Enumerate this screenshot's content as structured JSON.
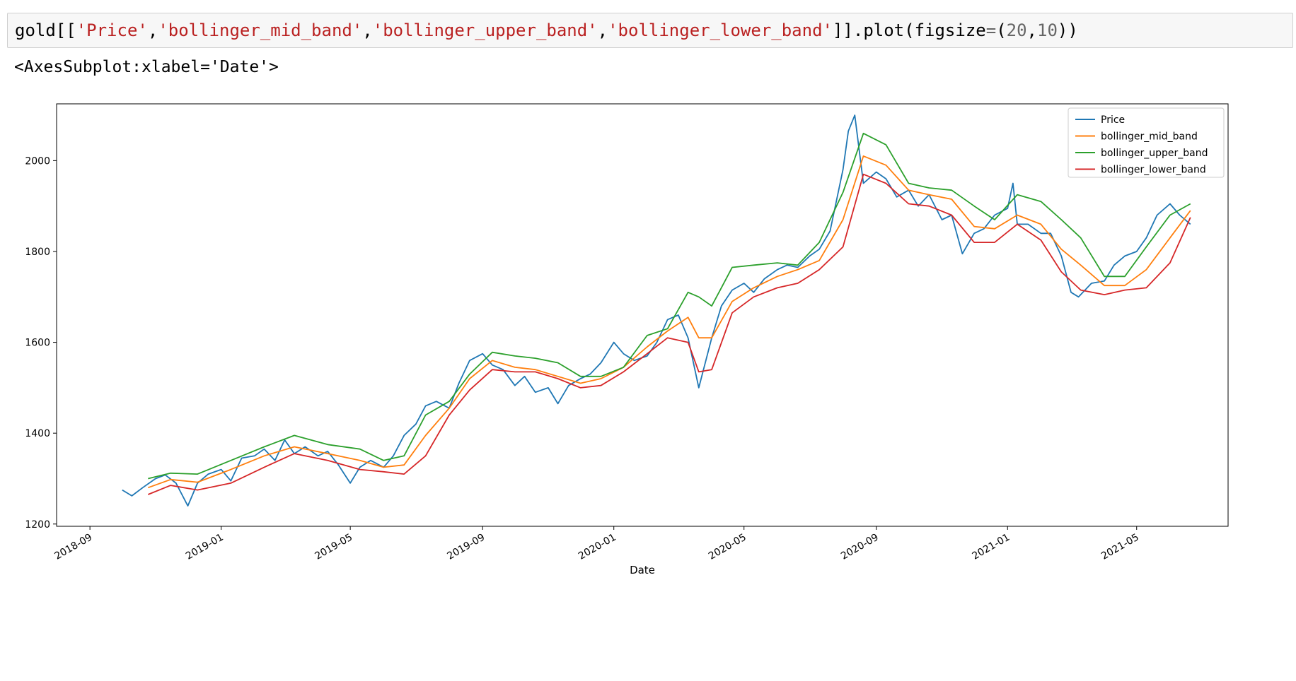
{
  "cell": {
    "prefix": "gold[[",
    "columns": [
      "'Price'",
      "'bollinger_mid_band'",
      "'bollinger_upper_band'",
      "'bollinger_lower_band'"
    ],
    "suffix_a": "]].plot(figsize",
    "eq": "=",
    "paren_open": "(",
    "num1": "20",
    "comma": ",",
    "num2": "10",
    "paren_close": "))"
  },
  "output": {
    "text": "<AxesSubplot:xlabel='Date'>"
  },
  "colors": {
    "price": "#1f77b4",
    "mid": "#ff7f0e",
    "upper": "#2ca02c",
    "lower": "#d62728"
  },
  "chart_data": {
    "type": "line",
    "xlabel": "Date",
    "ylabel": "",
    "xlim": [
      "2018-08-01",
      "2021-07-25"
    ],
    "ylim": [
      1195,
      2125
    ],
    "x_ticks": [
      "2018-09",
      "2019-01",
      "2019-05",
      "2019-09",
      "2020-01",
      "2020-05",
      "2020-09",
      "2021-01",
      "2021-05"
    ],
    "y_ticks": [
      1200,
      1400,
      1600,
      1800,
      2000
    ],
    "legend": "top-right",
    "grid": false,
    "series": [
      {
        "name": "Price",
        "x": [
          "2018-10-01",
          "2018-10-10",
          "2018-10-20",
          "2018-11-01",
          "2018-11-10",
          "2018-11-20",
          "2018-12-01",
          "2018-12-10",
          "2018-12-20",
          "2019-01-01",
          "2019-01-10",
          "2019-01-20",
          "2019-02-01",
          "2019-02-10",
          "2019-02-20",
          "2019-03-01",
          "2019-03-10",
          "2019-03-20",
          "2019-04-01",
          "2019-04-10",
          "2019-04-20",
          "2019-05-01",
          "2019-05-10",
          "2019-05-20",
          "2019-06-01",
          "2019-06-10",
          "2019-06-20",
          "2019-07-01",
          "2019-07-10",
          "2019-07-20",
          "2019-08-01",
          "2019-08-10",
          "2019-08-20",
          "2019-09-01",
          "2019-09-10",
          "2019-09-20",
          "2019-10-01",
          "2019-10-10",
          "2019-10-20",
          "2019-11-01",
          "2019-11-10",
          "2019-11-20",
          "2019-12-01",
          "2019-12-10",
          "2019-12-20",
          "2020-01-01",
          "2020-01-10",
          "2020-01-20",
          "2020-02-01",
          "2020-02-10",
          "2020-02-20",
          "2020-03-01",
          "2020-03-10",
          "2020-03-20",
          "2020-04-01",
          "2020-04-10",
          "2020-04-20",
          "2020-05-01",
          "2020-05-10",
          "2020-05-20",
          "2020-06-01",
          "2020-06-10",
          "2020-06-20",
          "2020-07-01",
          "2020-07-10",
          "2020-07-20",
          "2020-08-01",
          "2020-08-06",
          "2020-08-12",
          "2020-08-20",
          "2020-09-01",
          "2020-09-10",
          "2020-09-20",
          "2020-10-01",
          "2020-10-10",
          "2020-10-20",
          "2020-11-01",
          "2020-11-10",
          "2020-11-20",
          "2020-12-01",
          "2020-12-10",
          "2020-12-20",
          "2021-01-01",
          "2021-01-06",
          "2021-01-10",
          "2021-01-20",
          "2021-02-01",
          "2021-02-10",
          "2021-02-20",
          "2021-03-01",
          "2021-03-08",
          "2021-03-20",
          "2021-04-01",
          "2021-04-10",
          "2021-04-20",
          "2021-05-01",
          "2021-05-10",
          "2021-05-20",
          "2021-06-01",
          "2021-06-10",
          "2021-06-20"
        ],
        "values": [
          1275,
          1262,
          1280,
          1300,
          1308,
          1290,
          1240,
          1290,
          1310,
          1320,
          1295,
          1345,
          1350,
          1365,
          1340,
          1385,
          1355,
          1370,
          1350,
          1360,
          1330,
          1290,
          1325,
          1340,
          1325,
          1350,
          1395,
          1420,
          1460,
          1470,
          1455,
          1510,
          1560,
          1575,
          1550,
          1540,
          1505,
          1525,
          1490,
          1500,
          1465,
          1505,
          1520,
          1530,
          1555,
          1600,
          1575,
          1560,
          1570,
          1600,
          1650,
          1660,
          1610,
          1500,
          1610,
          1680,
          1715,
          1730,
          1710,
          1740,
          1760,
          1770,
          1765,
          1790,
          1805,
          1845,
          1980,
          2065,
          2100,
          1950,
          1975,
          1960,
          1920,
          1935,
          1900,
          1925,
          1870,
          1880,
          1795,
          1840,
          1850,
          1880,
          1895,
          1950,
          1860,
          1860,
          1840,
          1840,
          1790,
          1710,
          1700,
          1730,
          1735,
          1770,
          1790,
          1800,
          1830,
          1880,
          1905,
          1880,
          1860
        ]
      },
      {
        "name": "bollinger_mid_band",
        "x": [
          "2018-10-25",
          "2018-11-15",
          "2018-12-10",
          "2019-01-10",
          "2019-02-10",
          "2019-03-10",
          "2019-04-10",
          "2019-05-10",
          "2019-06-01",
          "2019-06-20",
          "2019-07-10",
          "2019-08-01",
          "2019-08-20",
          "2019-09-10",
          "2019-10-01",
          "2019-10-20",
          "2019-11-10",
          "2019-12-01",
          "2019-12-20",
          "2020-01-10",
          "2020-02-01",
          "2020-02-20",
          "2020-03-10",
          "2020-03-20",
          "2020-04-01",
          "2020-04-20",
          "2020-05-10",
          "2020-06-01",
          "2020-06-20",
          "2020-07-10",
          "2020-08-01",
          "2020-08-20",
          "2020-09-10",
          "2020-10-01",
          "2020-10-20",
          "2020-11-10",
          "2020-12-01",
          "2020-12-20",
          "2021-01-10",
          "2021-02-01",
          "2021-02-20",
          "2021-03-10",
          "2021-04-01",
          "2021-04-20",
          "2021-05-10",
          "2021-06-01",
          "2021-06-20"
        ],
        "values": [
          1280,
          1298,
          1292,
          1320,
          1350,
          1370,
          1355,
          1340,
          1325,
          1330,
          1395,
          1455,
          1520,
          1560,
          1545,
          1540,
          1525,
          1510,
          1520,
          1545,
          1590,
          1625,
          1655,
          1610,
          1610,
          1690,
          1720,
          1745,
          1760,
          1780,
          1870,
          2010,
          1990,
          1935,
          1925,
          1915,
          1855,
          1850,
          1880,
          1860,
          1805,
          1770,
          1725,
          1725,
          1760,
          1830,
          1890
        ]
      },
      {
        "name": "bollinger_upper_band",
        "x": [
          "2018-10-25",
          "2018-11-15",
          "2018-12-10",
          "2019-01-10",
          "2019-02-10",
          "2019-03-10",
          "2019-04-10",
          "2019-05-10",
          "2019-06-01",
          "2019-06-20",
          "2019-07-10",
          "2019-08-01",
          "2019-08-20",
          "2019-09-10",
          "2019-10-01",
          "2019-10-20",
          "2019-11-10",
          "2019-12-01",
          "2019-12-20",
          "2020-01-10",
          "2020-02-01",
          "2020-02-20",
          "2020-03-10",
          "2020-03-20",
          "2020-04-01",
          "2020-04-20",
          "2020-05-10",
          "2020-06-01",
          "2020-06-20",
          "2020-07-10",
          "2020-08-01",
          "2020-08-20",
          "2020-09-10",
          "2020-10-01",
          "2020-10-20",
          "2020-11-10",
          "2020-12-01",
          "2020-12-20",
          "2021-01-10",
          "2021-02-01",
          "2021-02-20",
          "2021-03-10",
          "2021-04-01",
          "2021-04-20",
          "2021-05-10",
          "2021-06-01",
          "2021-06-20"
        ],
        "values": [
          1300,
          1312,
          1310,
          1340,
          1370,
          1395,
          1375,
          1365,
          1340,
          1350,
          1440,
          1470,
          1530,
          1578,
          1570,
          1565,
          1555,
          1525,
          1525,
          1545,
          1615,
          1630,
          1710,
          1700,
          1680,
          1765,
          1770,
          1775,
          1770,
          1820,
          1930,
          2060,
          2035,
          1950,
          1940,
          1935,
          1900,
          1870,
          1925,
          1910,
          1870,
          1830,
          1745,
          1745,
          1810,
          1880,
          1905
        ]
      },
      {
        "name": "bollinger_lower_band",
        "x": [
          "2018-10-25",
          "2018-11-15",
          "2018-12-10",
          "2019-01-10",
          "2019-02-10",
          "2019-03-10",
          "2019-04-10",
          "2019-05-10",
          "2019-06-01",
          "2019-06-20",
          "2019-07-10",
          "2019-08-01",
          "2019-08-20",
          "2019-09-10",
          "2019-10-01",
          "2019-10-20",
          "2019-11-10",
          "2019-12-01",
          "2019-12-20",
          "2020-01-10",
          "2020-02-01",
          "2020-02-20",
          "2020-03-10",
          "2020-03-20",
          "2020-04-01",
          "2020-04-20",
          "2020-05-10",
          "2020-06-01",
          "2020-06-20",
          "2020-07-10",
          "2020-08-01",
          "2020-08-20",
          "2020-09-10",
          "2020-10-01",
          "2020-10-20",
          "2020-11-10",
          "2020-12-01",
          "2020-12-20",
          "2021-01-10",
          "2021-02-01",
          "2021-02-20",
          "2021-03-10",
          "2021-04-01",
          "2021-04-20",
          "2021-05-10",
          "2021-06-01",
          "2021-06-20"
        ],
        "values": [
          1265,
          1285,
          1275,
          1290,
          1325,
          1355,
          1340,
          1320,
          1315,
          1310,
          1350,
          1440,
          1495,
          1540,
          1535,
          1535,
          1520,
          1500,
          1505,
          1535,
          1575,
          1610,
          1600,
          1535,
          1540,
          1665,
          1700,
          1720,
          1730,
          1760,
          1810,
          1970,
          1950,
          1905,
          1900,
          1880,
          1820,
          1820,
          1860,
          1825,
          1755,
          1715,
          1705,
          1715,
          1720,
          1775,
          1875
        ]
      }
    ]
  }
}
